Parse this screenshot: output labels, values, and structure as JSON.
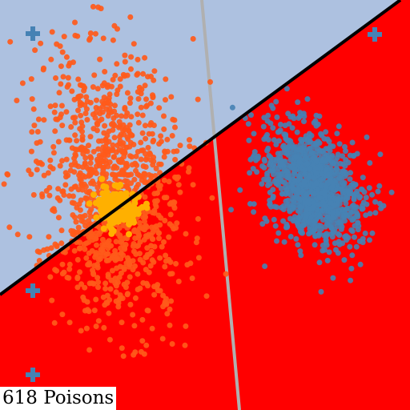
{
  "game": {
    "poison_count": "618",
    "poison_label": "618 Poisons",
    "colors": {
      "region_safe": "#adc1e0",
      "region_poisoned": "#ff0000",
      "decision_boundary": "#000000",
      "reference_line": "#b0b0b0",
      "class_orange": "#ff5a1a",
      "poison_points": "#ffb000",
      "class_blue": "#4682b4",
      "cross_markers": "#4682b4"
    },
    "markers": [
      {
        "name": "cross-marker-top-left",
        "icon": "plus-icon"
      },
      {
        "name": "cross-marker-top-right",
        "icon": "plus-icon"
      },
      {
        "name": "cross-marker-bottom-left",
        "icon": "plus-icon"
      },
      {
        "name": "cross-marker-bottom-left-lower",
        "icon": "plus-icon"
      }
    ]
  }
}
